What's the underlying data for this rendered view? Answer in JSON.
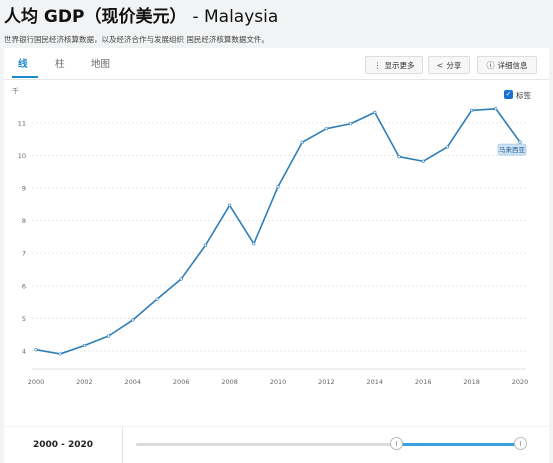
{
  "header": {
    "title": "人均 GDP（现价美元）",
    "country": "- Malaysia",
    "subtitle": "世界银行国民经济核算数据，以及经济合作与发展组织 国民经济核算数据文件。"
  },
  "tabs": [
    {
      "label": "线",
      "active": true
    },
    {
      "label": "柱",
      "active": false
    },
    {
      "label": "地图",
      "active": false
    }
  ],
  "toolbar": {
    "more_label": "显示更多",
    "share_label": "分享",
    "details_label": "详细信息"
  },
  "legend": {
    "checkbox_label": "标签",
    "checked": true
  },
  "chart_data": {
    "type": "line",
    "title": "人均 GDP（现价美元）- Malaysia",
    "unit_label": "千",
    "xlabel": "",
    "ylabel": "千",
    "x": [
      2000,
      2001,
      2002,
      2003,
      2004,
      2005,
      2006,
      2007,
      2008,
      2009,
      2010,
      2011,
      2012,
      2013,
      2014,
      2015,
      2016,
      2017,
      2018,
      2019,
      2020
    ],
    "series": [
      {
        "name": "马来西亚",
        "values": [
          4.04,
          3.91,
          4.17,
          4.46,
          4.95,
          5.59,
          6.21,
          7.24,
          8.47,
          7.29,
          9.04,
          10.4,
          10.82,
          10.97,
          11.32,
          9.96,
          9.82,
          10.26,
          11.38,
          11.43,
          10.41
        ],
        "color": "#2e7eb8"
      }
    ],
    "xticks": [
      2000,
      2002,
      2004,
      2006,
      2008,
      2010,
      2012,
      2014,
      2016,
      2018,
      2020
    ],
    "yticks": [
      4,
      5,
      6,
      7,
      8,
      9,
      10,
      11
    ],
    "xlim": [
      2000,
      2020
    ],
    "ylim": [
      3.5,
      11.8
    ],
    "end_label": "马来西亚"
  },
  "range": {
    "label": "2000 - 2020",
    "start": 2000,
    "end": 2020
  }
}
